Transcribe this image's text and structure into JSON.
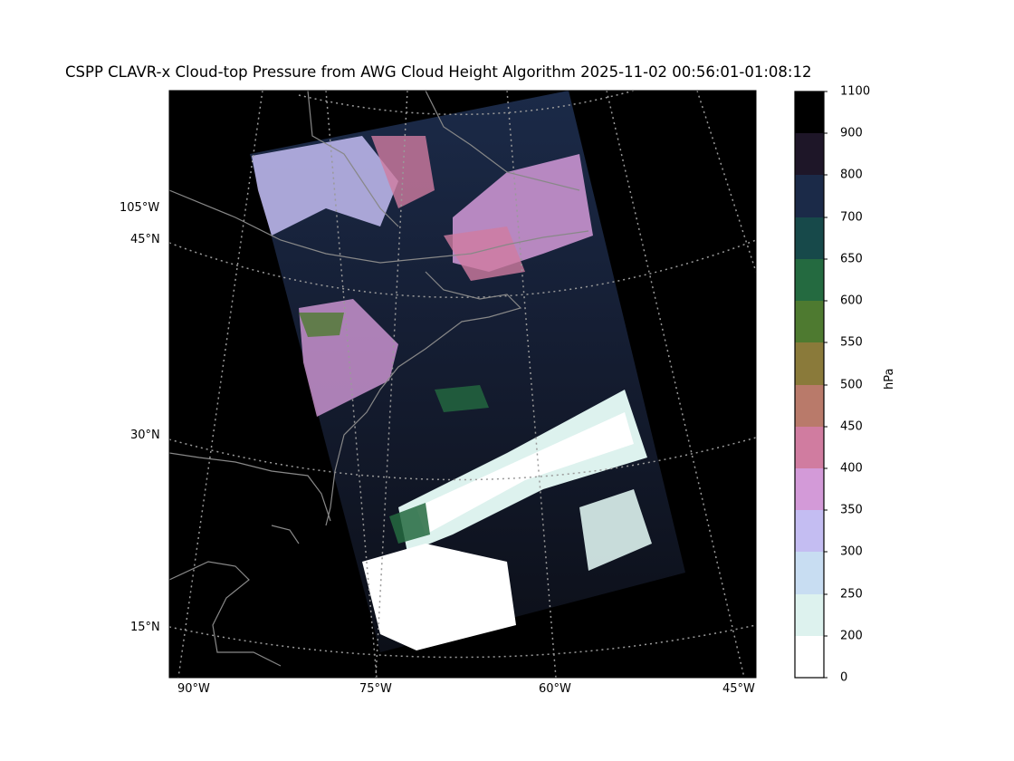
{
  "title": "CSPP CLAVR-x Cloud-top Pressure from AWG Cloud Height Algorithm 2025-11-02 00:56:01-01:08:12",
  "map": {
    "lon_labels_bottom": [
      "90°W",
      "75°W",
      "60°W",
      "45°W"
    ],
    "lat_labels_left": [
      "45°N",
      "30°N",
      "15°N"
    ],
    "lon_label_left": "105°W",
    "gridline_style": "dotted gray",
    "coastline_color": "#888888",
    "background_color": "#000000"
  },
  "colorbar": {
    "label": "hPa",
    "ticks": [
      "1100",
      "900",
      "800",
      "700",
      "650",
      "600",
      "550",
      "500",
      "450",
      "400",
      "350",
      "300",
      "250",
      "200",
      "0"
    ],
    "colors": [
      "#000000",
      "#1e1628",
      "#1b2a48",
      "#17494a",
      "#246a40",
      "#4e7a30",
      "#8a7a3a",
      "#b97a6a",
      "#d07ca0",
      "#d39ad8",
      "#c4bdf2",
      "#c8ddf2",
      "#ddf2ee",
      "#ffffff"
    ]
  }
}
